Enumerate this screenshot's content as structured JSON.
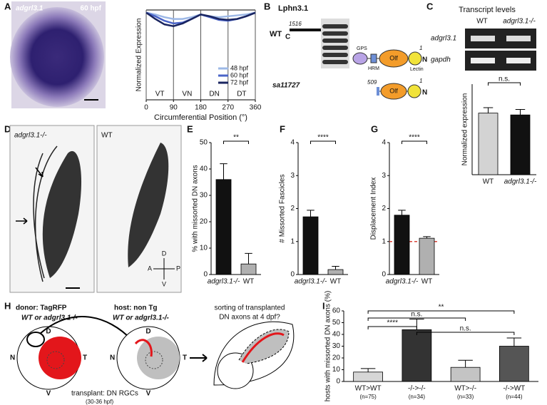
{
  "panel_letters": [
    "A",
    "B",
    "C",
    "D",
    "E",
    "F",
    "G",
    "H",
    "I"
  ],
  "panel_A": {
    "gene": "adgrl3.1",
    "stage": "60 hpf"
  },
  "panel_B": {
    "title": "Lphn3.1",
    "wt": "WT",
    "c_term": "C",
    "wt_length": "1516",
    "gps": "GPS",
    "hrm": "HRM",
    "olf": "Olf",
    "lectin": "Lectin",
    "n_pos": "1",
    "n_term": "N",
    "mutant": "sa11727",
    "mut_length": "509",
    "mut_olf": "Olf",
    "mut_n_pos": "1",
    "mut_n_term": "N"
  },
  "panel_C": {
    "title": "Transcript levels",
    "columns": [
      "WT",
      "adgrl3.1-/-"
    ],
    "rows": [
      "adgrl3.1",
      "gapdh"
    ]
  },
  "panel_D": {
    "mutant": "adgrl3.1-/-",
    "wt": "WT",
    "axes": [
      "D",
      "A",
      "P",
      "V"
    ]
  },
  "panel_H": {
    "donor": "donor: TagRFP",
    "donor_geno": "WT or adgrl3.1-/-",
    "host": "host: non Tg",
    "host_geno": "WT or adgrl3.1-/-",
    "question": "sorting of transplanted",
    "question2": "DN axons at 4 dpf?",
    "eye1": [
      "D",
      "N",
      "T",
      "V"
    ],
    "eye2": [
      "D",
      "N",
      "T",
      "V"
    ],
    "transplant": "transplant: DN RGCs",
    "time": "(30-36 hpf)"
  },
  "chart_data": [
    {
      "type": "line",
      "xlabel": "Circumferential Position (°)",
      "ylabel": "Normalized Expression",
      "x": [
        0,
        30,
        60,
        90,
        120,
        150,
        180,
        210,
        240,
        270,
        300,
        330,
        360
      ],
      "xlim": [
        0,
        360
      ],
      "xticks": [
        0,
        90,
        180,
        270,
        360
      ],
      "ylim": [
        0,
        1
      ],
      "xgrid": true,
      "legend": "lower right",
      "annotations": [
        "VT",
        "VN",
        "DN",
        "DT"
      ],
      "series": [
        {
          "name": "48 hpf",
          "color": "#9db8e6",
          "values": [
            0.97,
            0.95,
            0.92,
            0.9,
            0.9,
            0.92,
            0.95,
            0.93,
            0.92,
            0.93,
            0.94,
            0.95,
            0.97
          ]
        },
        {
          "name": "60 hpf",
          "color": "#4a64c8",
          "values": [
            0.97,
            0.93,
            0.88,
            0.85,
            0.86,
            0.9,
            0.95,
            0.92,
            0.89,
            0.88,
            0.9,
            0.93,
            0.97
          ]
        },
        {
          "name": "72 hpf",
          "color": "#1a2560",
          "values": [
            0.97,
            0.9,
            0.84,
            0.82,
            0.85,
            0.9,
            0.95,
            0.93,
            0.9,
            0.89,
            0.9,
            0.93,
            0.97
          ]
        }
      ]
    },
    {
      "type": "bar",
      "ylabel": "Normalized expression",
      "categories": [
        "WT",
        "adgrl3.1-/-"
      ],
      "values": [
        0.34,
        0.33
      ],
      "errors": [
        0.03,
        0.03
      ],
      "ylim": [
        0,
        0.5
      ],
      "colors": [
        "#d3d3d3",
        "#111111"
      ],
      "annotations": [
        "n.s."
      ]
    },
    {
      "type": "bar",
      "ylabel": "% with missorted DN axons",
      "categories": [
        "adgrl3.1-/-",
        "WT"
      ],
      "values": [
        36,
        4
      ],
      "errors": [
        6,
        4
      ],
      "ylim": [
        0,
        50
      ],
      "yticks": [
        0,
        10,
        20,
        30,
        40,
        50
      ],
      "colors": [
        "#111111",
        "#b0b0b0"
      ],
      "annotations": [
        "**"
      ]
    },
    {
      "type": "bar",
      "ylabel": "# Missorted Fascicles",
      "categories": [
        "adgrl3.1-/-",
        "WT"
      ],
      "values": [
        1.75,
        0.15
      ],
      "errors": [
        0.2,
        0.1
      ],
      "ylim": [
        0,
        4
      ],
      "yticks": [
        0,
        1,
        2,
        3,
        4
      ],
      "colors": [
        "#111111",
        "#b0b0b0"
      ],
      "annotations": [
        "****"
      ]
    },
    {
      "type": "bar",
      "ylabel": "Displacement Index",
      "categories": [
        "adgrl3.1-/-",
        "WT"
      ],
      "values": [
        1.8,
        1.1
      ],
      "errors": [
        0.15,
        0.05
      ],
      "ylim": [
        0,
        4
      ],
      "yticks": [
        0,
        1,
        2,
        3,
        4
      ],
      "colors": [
        "#111111",
        "#b0b0b0"
      ],
      "annotations": [
        "****"
      ],
      "hline": {
        "value": 1,
        "color": "#d9463a"
      }
    },
    {
      "type": "bar",
      "ylabel": "hosts with missorted DN axons (%)",
      "categories": [
        "WT>WT",
        "-/->-/-",
        "WT>-/-",
        "-/->WT"
      ],
      "sublabels": [
        "(n=75)",
        "(n=34)",
        "(n=33)",
        "(n=44)"
      ],
      "values": [
        8,
        44,
        12,
        30
      ],
      "errors": [
        3,
        9,
        6,
        7
      ],
      "ylim": [
        0,
        60
      ],
      "yticks": [
        0,
        10,
        20,
        30,
        40,
        50,
        60
      ],
      "colors": [
        "#d6d6d6",
        "#333333",
        "#c4c4c4",
        "#555555"
      ],
      "annotations": [
        "**",
        "n.s.",
        "****",
        "n.s."
      ]
    }
  ]
}
